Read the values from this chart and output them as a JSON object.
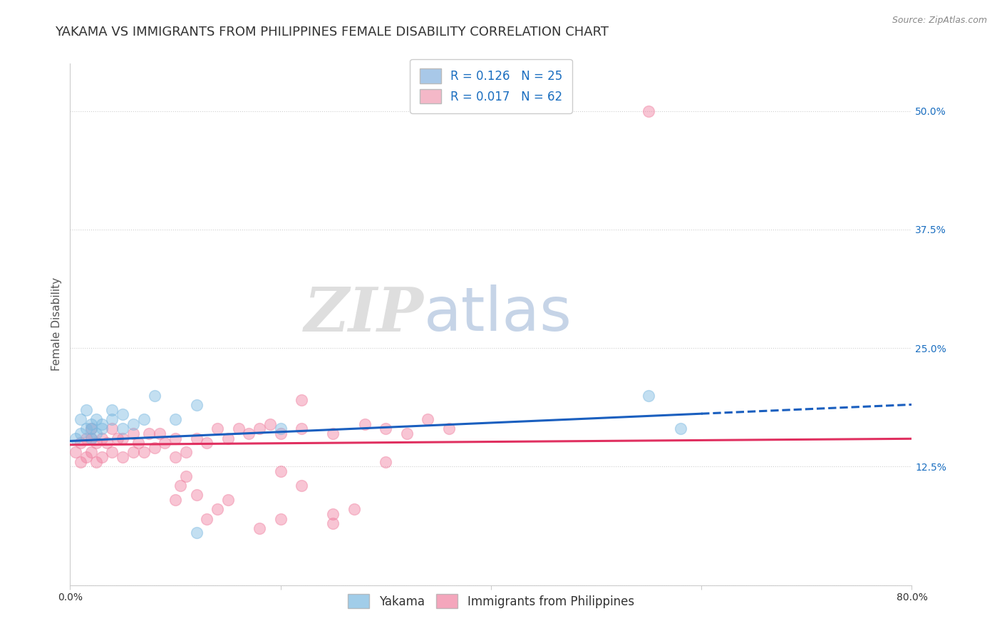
{
  "title": "YAKAMA VS IMMIGRANTS FROM PHILIPPINES FEMALE DISABILITY CORRELATION CHART",
  "source": "Source: ZipAtlas.com",
  "ylabel": "Female Disability",
  "x_min": 0.0,
  "x_max": 0.8,
  "y_min": 0.0,
  "y_max": 0.55,
  "x_ticks": [
    0.0,
    0.2,
    0.4,
    0.6,
    0.8
  ],
  "y_ticks": [
    0.0,
    0.125,
    0.25,
    0.375,
    0.5
  ],
  "legend_entries": [
    {
      "label": "R = 0.126   N = 25",
      "color": "#a8c8e8"
    },
    {
      "label": "R = 0.017   N = 62",
      "color": "#f4b8c8"
    }
  ],
  "yakama_color": "#7ab8e0",
  "philippines_color": "#f080a0",
  "yakama_line_color": "#1a5fbf",
  "philippines_line_color": "#e03060",
  "watermark_zip": "ZIP",
  "watermark_atlas": "atlas",
  "background_color": "#ffffff",
  "grid_color": "#d0d0d0",
  "title_fontsize": 13,
  "axis_label_fontsize": 11,
  "tick_fontsize": 10,
  "legend_fontsize": 12,
  "yakama_x": [
    0.005,
    0.01,
    0.01,
    0.015,
    0.015,
    0.02,
    0.02,
    0.02,
    0.025,
    0.025,
    0.03,
    0.03,
    0.04,
    0.04,
    0.05,
    0.05,
    0.06,
    0.07,
    0.08,
    0.1,
    0.12,
    0.2,
    0.55,
    0.58,
    0.12
  ],
  "yakama_y": [
    0.155,
    0.175,
    0.16,
    0.165,
    0.185,
    0.155,
    0.17,
    0.165,
    0.16,
    0.175,
    0.17,
    0.165,
    0.185,
    0.175,
    0.165,
    0.18,
    0.17,
    0.175,
    0.2,
    0.175,
    0.19,
    0.165,
    0.2,
    0.165,
    0.055
  ],
  "philippines_x": [
    0.005,
    0.01,
    0.01,
    0.015,
    0.015,
    0.02,
    0.02,
    0.02,
    0.025,
    0.025,
    0.03,
    0.03,
    0.035,
    0.04,
    0.04,
    0.045,
    0.05,
    0.05,
    0.06,
    0.06,
    0.065,
    0.07,
    0.075,
    0.08,
    0.085,
    0.09,
    0.1,
    0.1,
    0.11,
    0.12,
    0.13,
    0.14,
    0.15,
    0.16,
    0.17,
    0.18,
    0.19,
    0.2,
    0.22,
    0.25,
    0.28,
    0.3,
    0.32,
    0.34,
    0.36,
    0.1,
    0.105,
    0.11,
    0.12,
    0.13,
    0.14,
    0.15,
    0.18,
    0.2,
    0.25,
    0.27,
    0.55,
    0.3,
    0.2,
    0.22,
    0.25,
    0.22
  ],
  "philippines_y": [
    0.14,
    0.13,
    0.15,
    0.135,
    0.155,
    0.14,
    0.155,
    0.165,
    0.13,
    0.15,
    0.135,
    0.155,
    0.15,
    0.14,
    0.165,
    0.155,
    0.135,
    0.155,
    0.14,
    0.16,
    0.15,
    0.14,
    0.16,
    0.145,
    0.16,
    0.15,
    0.135,
    0.155,
    0.14,
    0.155,
    0.15,
    0.165,
    0.155,
    0.165,
    0.16,
    0.165,
    0.17,
    0.16,
    0.165,
    0.16,
    0.17,
    0.165,
    0.16,
    0.175,
    0.165,
    0.09,
    0.105,
    0.115,
    0.095,
    0.07,
    0.08,
    0.09,
    0.06,
    0.07,
    0.065,
    0.08,
    0.5,
    0.13,
    0.12,
    0.105,
    0.075,
    0.195
  ]
}
